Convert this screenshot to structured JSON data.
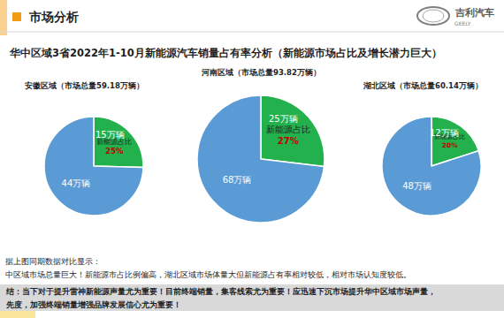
{
  "header": {
    "section": "市场分析",
    "logo": "吉利汽车",
    "logo_en": "GEELY"
  },
  "title": "华中区域3省2022年1-10月新能源汽车销量占有率分析（新能源市场占比及增长潜力巨大）",
  "chart_data": [
    {
      "type": "pie",
      "title": "安徽区域（市场总量59.18万辆）",
      "values": [
        15,
        44
      ],
      "value_labels": [
        "15万辆",
        "44万辆"
      ],
      "colors": [
        "#22b14c",
        "#5b9bd5"
      ],
      "share_label": "新能源占比",
      "share_text": "25%"
    },
    {
      "type": "pie",
      "title": "河南区域（市场总量93.82万辆）",
      "values": [
        25,
        68
      ],
      "value_labels": [
        "25万辆",
        "68万辆"
      ],
      "colors": [
        "#22b14c",
        "#5b9bd5"
      ],
      "share_label": "新能源占比",
      "share_text": "27%"
    },
    {
      "type": "pie",
      "title": "湖北区域（市场总量60.14万辆）",
      "values": [
        12,
        48
      ],
      "value_labels": [
        "12万辆",
        "48万辆"
      ],
      "colors": [
        "#22b14c",
        "#5b9bd5"
      ],
      "share_label": "新能源占比",
      "share_text": "20%"
    }
  ],
  "notes": {
    "intro": "据上图同期数据对比显示：",
    "lines": [
      "中区域市场总量巨大！新能源市占比例偏高，湖北区域市场体量大但新能源占有率相对较低，相对市场认知度较低。"
    ],
    "conclusion": [
      "结：当下对于提升雷神新能源声量尤为重要！目前终端销量，集客线索尤为重要！应迅速下沉市场提升华中区域市场声量，",
      "先度，加强终端销量增强品牌发展信心尤为重要！"
    ]
  }
}
